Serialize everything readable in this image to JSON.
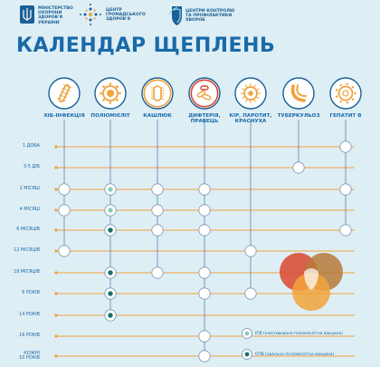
{
  "header": {
    "ministry_lines": [
      "МІНІСТЕРСТВО",
      "ОХОРОНИ",
      "ЗДОРОВ'Я",
      "УКРАЇНИ"
    ],
    "center_public_health_lines": [
      "ЦЕНТР",
      "ГРОМАДСЬКОГО",
      "ЗДОРОВ'Я"
    ],
    "cdc_lines": [
      "ЦЕНТРИ КОНТРОЛЮ",
      "ТА ПРОФІЛАКТИКИ",
      "ХВОРОБ"
    ]
  },
  "title": "КАЛЕНДАР ЩЕПЛЕНЬ",
  "diseases": [
    {
      "label": "ХІБ-ІНФЕКЦІЯ",
      "icon": "hib-bacteria-icon"
    },
    {
      "label": "ПОЛІОМІЄЛІТ",
      "icon": "polio-virus-icon"
    },
    {
      "label": "КАШЛЮК",
      "icon": "pertussis-bacteria-icon"
    },
    {
      "label": "ДИФТЕРІЯ,\nПРАВЕЦЬ",
      "icon": "diphtheria-tetanus-icon"
    },
    {
      "label": "КІР, ПАРОТИТ,\nКРАСНУХА",
      "icon": "measles-virus-icon"
    },
    {
      "label": "ТУБЕРКУЛЬОЗ",
      "icon": "tuberculosis-icon"
    },
    {
      "label": "ГЕПАТИТ В",
      "icon": "hepatitis-b-virus-icon"
    }
  ],
  "ages": [
    "1 ДОБА",
    "3-5 ДІБ",
    "2 МІСЯЦІ",
    "4 МІСЯЦІ",
    "6 МІСЯЦІВ",
    "12 МІСЯЦІВ",
    "18 МІСЯЦІВ",
    "6 РОКІВ",
    "14 РОКІВ",
    "16 РОКІВ",
    "КОЖНІ\n10 РОКІВ"
  ],
  "doses": [
    {
      "age": 0,
      "disease": 6,
      "type": "plain"
    },
    {
      "age": 1,
      "disease": 5,
      "type": "plain"
    },
    {
      "age": 2,
      "disease": 0,
      "type": "plain"
    },
    {
      "age": 2,
      "disease": 1,
      "type": "ipv"
    },
    {
      "age": 2,
      "disease": 2,
      "type": "plain"
    },
    {
      "age": 2,
      "disease": 3,
      "type": "plain"
    },
    {
      "age": 2,
      "disease": 6,
      "type": "plain"
    },
    {
      "age": 3,
      "disease": 0,
      "type": "plain"
    },
    {
      "age": 3,
      "disease": 1,
      "type": "ipv"
    },
    {
      "age": 3,
      "disease": 2,
      "type": "plain"
    },
    {
      "age": 3,
      "disease": 3,
      "type": "plain"
    },
    {
      "age": 4,
      "disease": 1,
      "type": "opv"
    },
    {
      "age": 4,
      "disease": 2,
      "type": "plain"
    },
    {
      "age": 4,
      "disease": 3,
      "type": "plain"
    },
    {
      "age": 4,
      "disease": 6,
      "type": "plain"
    },
    {
      "age": 5,
      "disease": 0,
      "type": "plain"
    },
    {
      "age": 5,
      "disease": 4,
      "type": "plain"
    },
    {
      "age": 6,
      "disease": 1,
      "type": "opv"
    },
    {
      "age": 6,
      "disease": 2,
      "type": "plain"
    },
    {
      "age": 6,
      "disease": 3,
      "type": "plain"
    },
    {
      "age": 7,
      "disease": 1,
      "type": "opv"
    },
    {
      "age": 7,
      "disease": 3,
      "type": "plain"
    },
    {
      "age": 7,
      "disease": 4,
      "type": "plain"
    },
    {
      "age": 8,
      "disease": 1,
      "type": "opv"
    },
    {
      "age": 9,
      "disease": 3,
      "type": "plain"
    },
    {
      "age": 10,
      "disease": 3,
      "type": "plain"
    }
  ],
  "legend": {
    "ipv": "ІПВ (інактивована поліомієлітна вакцина)",
    "opv": "ОПВ (оральна поліомієлітна вакцина)"
  },
  "colors": {
    "primary": "#1a6aa8",
    "line": "#f0a23c",
    "background": "#deeef5",
    "dose_fill": "#ffffff",
    "opv_dot": "#18706a",
    "ipv_dot": "#8fc9b8"
  }
}
